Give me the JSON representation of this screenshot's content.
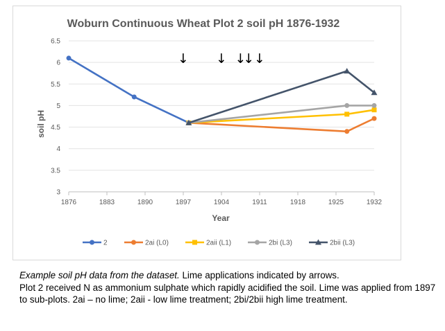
{
  "chart_data": {
    "type": "line",
    "title": "Woburn Continuous Wheat Plot 2 soil pH 1876-1932",
    "xlabel": "Year",
    "ylabel": "soil pH",
    "xlim": [
      1876,
      1932
    ],
    "ylim": [
      3,
      6.5
    ],
    "x_ticks": [
      "1876",
      "1883",
      "1890",
      "1897",
      "1904",
      "1911",
      "1918",
      "1925",
      "1932"
    ],
    "y_ticks": [
      "3",
      "3.5",
      "4",
      "4.5",
      "5",
      "5.5",
      "6",
      "6.5"
    ],
    "grid": "horizontal",
    "legend": "bottom",
    "lime_applications": [
      1897,
      1904,
      1907.5,
      1909,
      1911
    ],
    "series": [
      {
        "name": "2",
        "color": "#4472c4",
        "marker": "circle",
        "points": [
          [
            1876,
            6.1
          ],
          [
            1888,
            5.2
          ],
          [
            1898,
            4.6
          ]
        ]
      },
      {
        "name": "2ai (L0)",
        "color": "#ed7d31",
        "marker": "circle",
        "points": [
          [
            1898,
            4.6
          ],
          [
            1927,
            4.4
          ],
          [
            1932,
            4.7
          ]
        ]
      },
      {
        "name": "2aii (L1)",
        "color": "#ffc000",
        "marker": "square",
        "points": [
          [
            1898,
            4.6
          ],
          [
            1927,
            4.8
          ],
          [
            1932,
            4.9
          ]
        ]
      },
      {
        "name": "2bi (L3)",
        "color": "#a5a5a5",
        "marker": "circle",
        "points": [
          [
            1898,
            4.6
          ],
          [
            1927,
            5.0
          ],
          [
            1932,
            5.0
          ]
        ]
      },
      {
        "name": "2bii (L3)",
        "color": "#44546a",
        "marker": "triangle",
        "points": [
          [
            1898,
            4.6
          ],
          [
            1927,
            5.8
          ],
          [
            1932,
            5.3
          ]
        ]
      }
    ]
  },
  "caption": {
    "italic": "Example soil pH data from the dataset.",
    "line1_rest": " Lime applications indicated by arrows.",
    "line2": "Plot 2 received N as ammonium sulphate which rapidly acidified the soil. Lime was applied from 1897 to sub-plots. 2ai – no lime; 2aii - low lime treatment; 2bi/2bii high lime treatment."
  },
  "arrow_glyph": "↓"
}
